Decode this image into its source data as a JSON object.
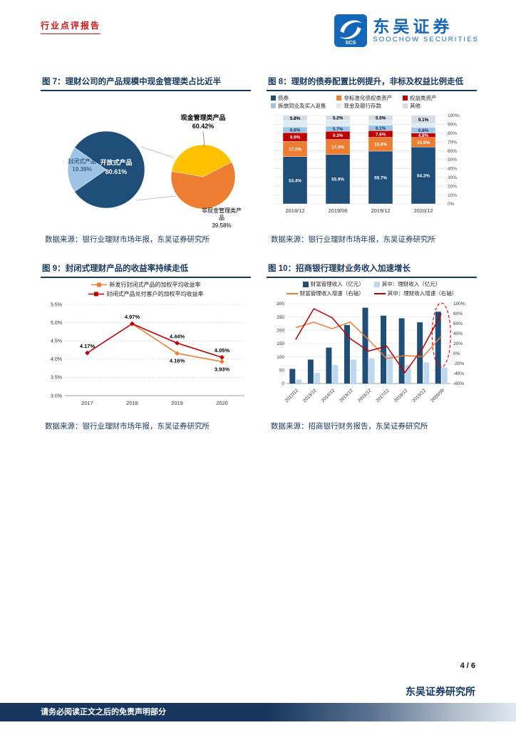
{
  "header": {
    "report_tag": "行业点评报告",
    "brand": {
      "name_cn": "东吴证券",
      "name_en": "SOOCHOW SECURITIES",
      "monogram": "SCS"
    }
  },
  "figures": [
    {
      "id": 7,
      "title": "图 7：理财公司的产品规模中现金管理类占比近半",
      "source": "数据来源：银行业理财市场年报，东吴证券研究所"
    },
    {
      "id": 8,
      "title": "图 8：理财的债券配置比例提升，非标及权益比例走低",
      "source": "数据来源：银行业理财市场年报，东吴证券研究所"
    },
    {
      "id": 9,
      "title": "图 9：封闭式理财产品的收益率持续走低",
      "source": "数据来源：银行业理财市场年报，东吴证券研究所"
    },
    {
      "id": 10,
      "title": "图 10：招商银行理财业务收入加速增长",
      "source": "数据来源：招商银行财务报告，东吴证券研究所"
    }
  ],
  "chart_data": [
    {
      "figure": 7,
      "type": "pie",
      "pies": [
        {
          "position": "left",
          "slices": [
            {
              "label": "开放式产品",
              "pct": "80.61%",
              "value": 80.61,
              "color": "#1F4E79",
              "text_color": "#FFFFFF"
            },
            {
              "label": "封闭式产品",
              "pct": "19.39%",
              "value": 19.39,
              "color": "#9DC3E6",
              "text_color": "#17375E"
            }
          ]
        },
        {
          "position": "right",
          "slices": [
            {
              "label": "现金管理类产品",
              "pct": "60.42%",
              "value": 60.42,
              "color": "#ED7D31",
              "text_color": "#000000"
            },
            {
              "label": "非现金管理类产品",
              "pct": "39.58%",
              "value": 39.58,
              "color": "#FFC000",
              "text_color": "#000000"
            }
          ]
        }
      ]
    },
    {
      "figure": 8,
      "type": "bar",
      "stacked": true,
      "categories": [
        "2018/12",
        "2019/06",
        "2019/12",
        "2020/12"
      ],
      "series": [
        {
          "name": "债券",
          "color": "#1F4E79",
          "label_color": "#FFFFFF",
          "show_labels": true,
          "values": [
            53.4,
            55.9,
            59.7,
            64.3
          ]
        },
        {
          "name": "非标准化债权类资产",
          "color": "#ED7D31",
          "label_color": "#FFFFFF",
          "show_labels": true,
          "values": [
            17.2,
            17.0,
            15.6,
            10.9
          ]
        },
        {
          "name": "权益类资产",
          "color": "#C00000",
          "label_color": "#FFFFFF",
          "show_labels": true,
          "values": [
            9.9,
            9.3,
            7.6,
            4.8
          ]
        },
        {
          "name": "拆放同业及买入返售",
          "color": "#9DC3E6",
          "label_color": "#17375E",
          "show_labels": true,
          "values": [
            6.6,
            5.7,
            6.1,
            6.6
          ]
        },
        {
          "name": "现金及银行存款",
          "color": "#DEEBF7",
          "label_color": "#17375E",
          "show_labels": false,
          "values": [
            7.1,
            6.9,
            5.6,
            4.3
          ]
        },
        {
          "name": "其他",
          "color": "#D6DCE4",
          "label_color": "#000000",
          "show_labels": true,
          "values": [
            5.8,
            5.2,
            5.5,
            9.1
          ]
        }
      ],
      "ylim": [
        0,
        100
      ],
      "yticks": [
        "0%",
        "10%",
        "20%",
        "30%",
        "40%",
        "50%",
        "60%",
        "70%",
        "80%",
        "90%",
        "100%"
      ],
      "axis_side": "right"
    },
    {
      "figure": 9,
      "type": "line",
      "x": [
        "2017",
        "2018",
        "2019",
        "2020"
      ],
      "ylim": [
        3.0,
        5.5
      ],
      "yticks": [
        "3.0%",
        "3.5%",
        "4.0%",
        "4.5%",
        "5.0%",
        "5.5%"
      ],
      "series": [
        {
          "name": "新发行封闭式产品的加权平均收益率",
          "color": "#ED7D31",
          "points": [
            {
              "x": "2018",
              "y": 4.97
            },
            {
              "x": "2019",
              "y": 4.16,
              "label": "4.16%",
              "label_pos": "below"
            },
            {
              "x": "2020",
              "y": 3.93,
              "label": "3.93%",
              "label_pos": "below"
            }
          ]
        },
        {
          "name": "封闭式产品兑付客户的加权平均收益率",
          "color": "#C00000",
          "points": [
            {
              "x": "2017",
              "y": 4.17,
              "label": "4.17%",
              "label_pos": "above"
            },
            {
              "x": "2018",
              "y": 4.97,
              "label": "4.97%",
              "label_pos": "above"
            },
            {
              "x": "2019",
              "y": 4.44,
              "label": "4.44%",
              "label_pos": "above"
            },
            {
              "x": "2020",
              "y": 4.05,
              "label": "4.05%",
              "label_pos": "above"
            }
          ]
        }
      ]
    },
    {
      "figure": 10,
      "type": "combo",
      "categories": [
        "2012/12",
        "2013/12",
        "2014/12",
        "2015/12",
        "2016/12",
        "2017/12",
        "2018/12",
        "2019/12",
        "2020/09"
      ],
      "bar_series": [
        {
          "name": "财富管理收入（亿元）",
          "color": "#1F4E79",
          "axis": "left",
          "values": [
            55,
            90,
            135,
            220,
            285,
            255,
            245,
            230,
            270
          ]
        },
        {
          "name": "其中：理财收入（亿元）",
          "color": "#BDD7EE",
          "axis": "left",
          "values": [
            15,
            40,
            70,
            90,
            95,
            110,
            70,
            80,
            60
          ]
        }
      ],
      "line_series": [
        {
          "name": "财富管理收入增速（右轴）",
          "color": "#ED7D31",
          "axis": "right",
          "values": [
            52,
            63,
            50,
            63,
            28,
            -10,
            -4,
            -6,
            35
          ]
        },
        {
          "name": "其中：理财收入增速（右轴）",
          "color": "#C00000",
          "axis": "right",
          "values": [
            28,
            90,
            72,
            30,
            5,
            15,
            -38,
            12,
            80
          ]
        }
      ],
      "left_ylim": [
        0,
        300
      ],
      "left_yticks": [
        "0",
        "50",
        "100",
        "150",
        "200",
        "250",
        "300"
      ],
      "right_ylim": [
        -60,
        100
      ],
      "right_yticks": [
        "-60%",
        "-40%",
        "-20%",
        "0%",
        "20%",
        "40%",
        "60%",
        "80%",
        "100%"
      ],
      "annotation": {
        "type": "dashed-ellipse",
        "color": "#FF0000",
        "at_category": "2020/09"
      }
    }
  ],
  "footer": {
    "page": "4 / 6",
    "institute": "东吴证券研究所",
    "disclaimer": "请务必阅读正文之后的免责声明部分"
  }
}
